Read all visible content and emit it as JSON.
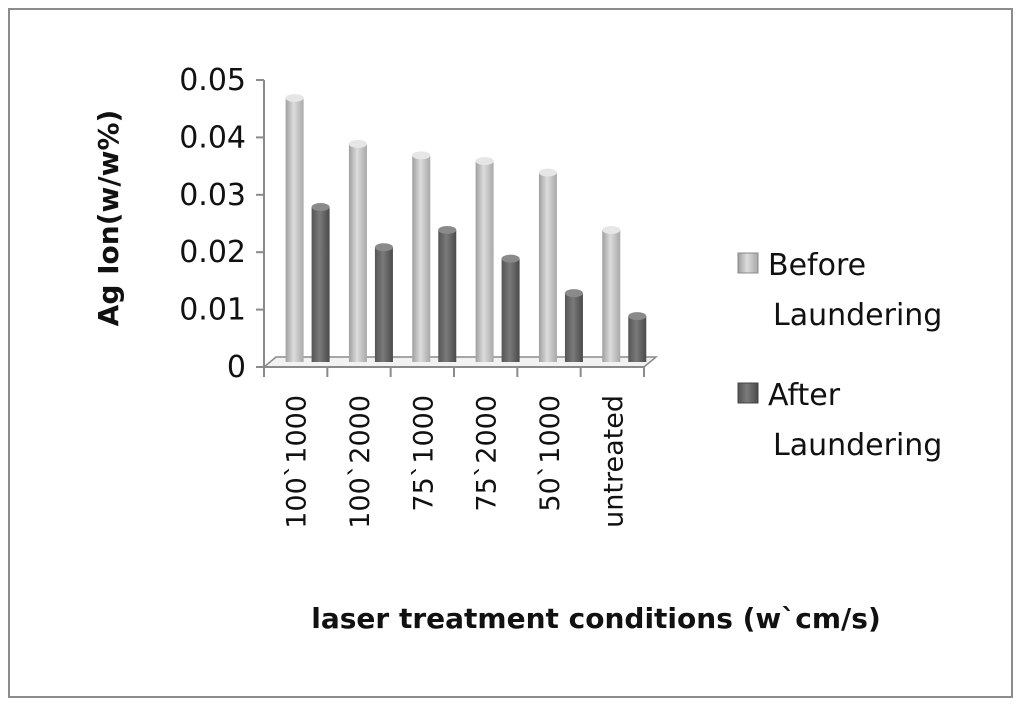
{
  "chart_data": {
    "type": "bar",
    "title": "",
    "xlabel": "laser treatment conditions  (w`cm/s)",
    "ylabel": "Ag Ion(w/w%)",
    "ylim": [
      0,
      0.05
    ],
    "yticks": [
      "0",
      "0.01",
      "0.02",
      "0.03",
      "0.04",
      "0.05"
    ],
    "categories": [
      "100`1000",
      "100`2000",
      "75`1000",
      "75`2000",
      "50`1000",
      "untreated"
    ],
    "series": [
      {
        "name": "Before Laundering",
        "values": [
          0.046,
          0.038,
          0.036,
          0.035,
          0.033,
          0.023
        ]
      },
      {
        "name": "After Laundering",
        "values": [
          0.027,
          0.02,
          0.023,
          0.018,
          0.012,
          0.008
        ]
      }
    ],
    "legend_position": "right",
    "grid": false
  },
  "colors": {
    "before_light": "#d6d6d6",
    "before_mid": "#b8b8b8",
    "before_dark": "#9a9a9a",
    "after_light": "#9a9a9a",
    "after_mid": "#6e6e6e",
    "after_dark": "#4c4c4c",
    "axis": "#8a8a8a"
  }
}
